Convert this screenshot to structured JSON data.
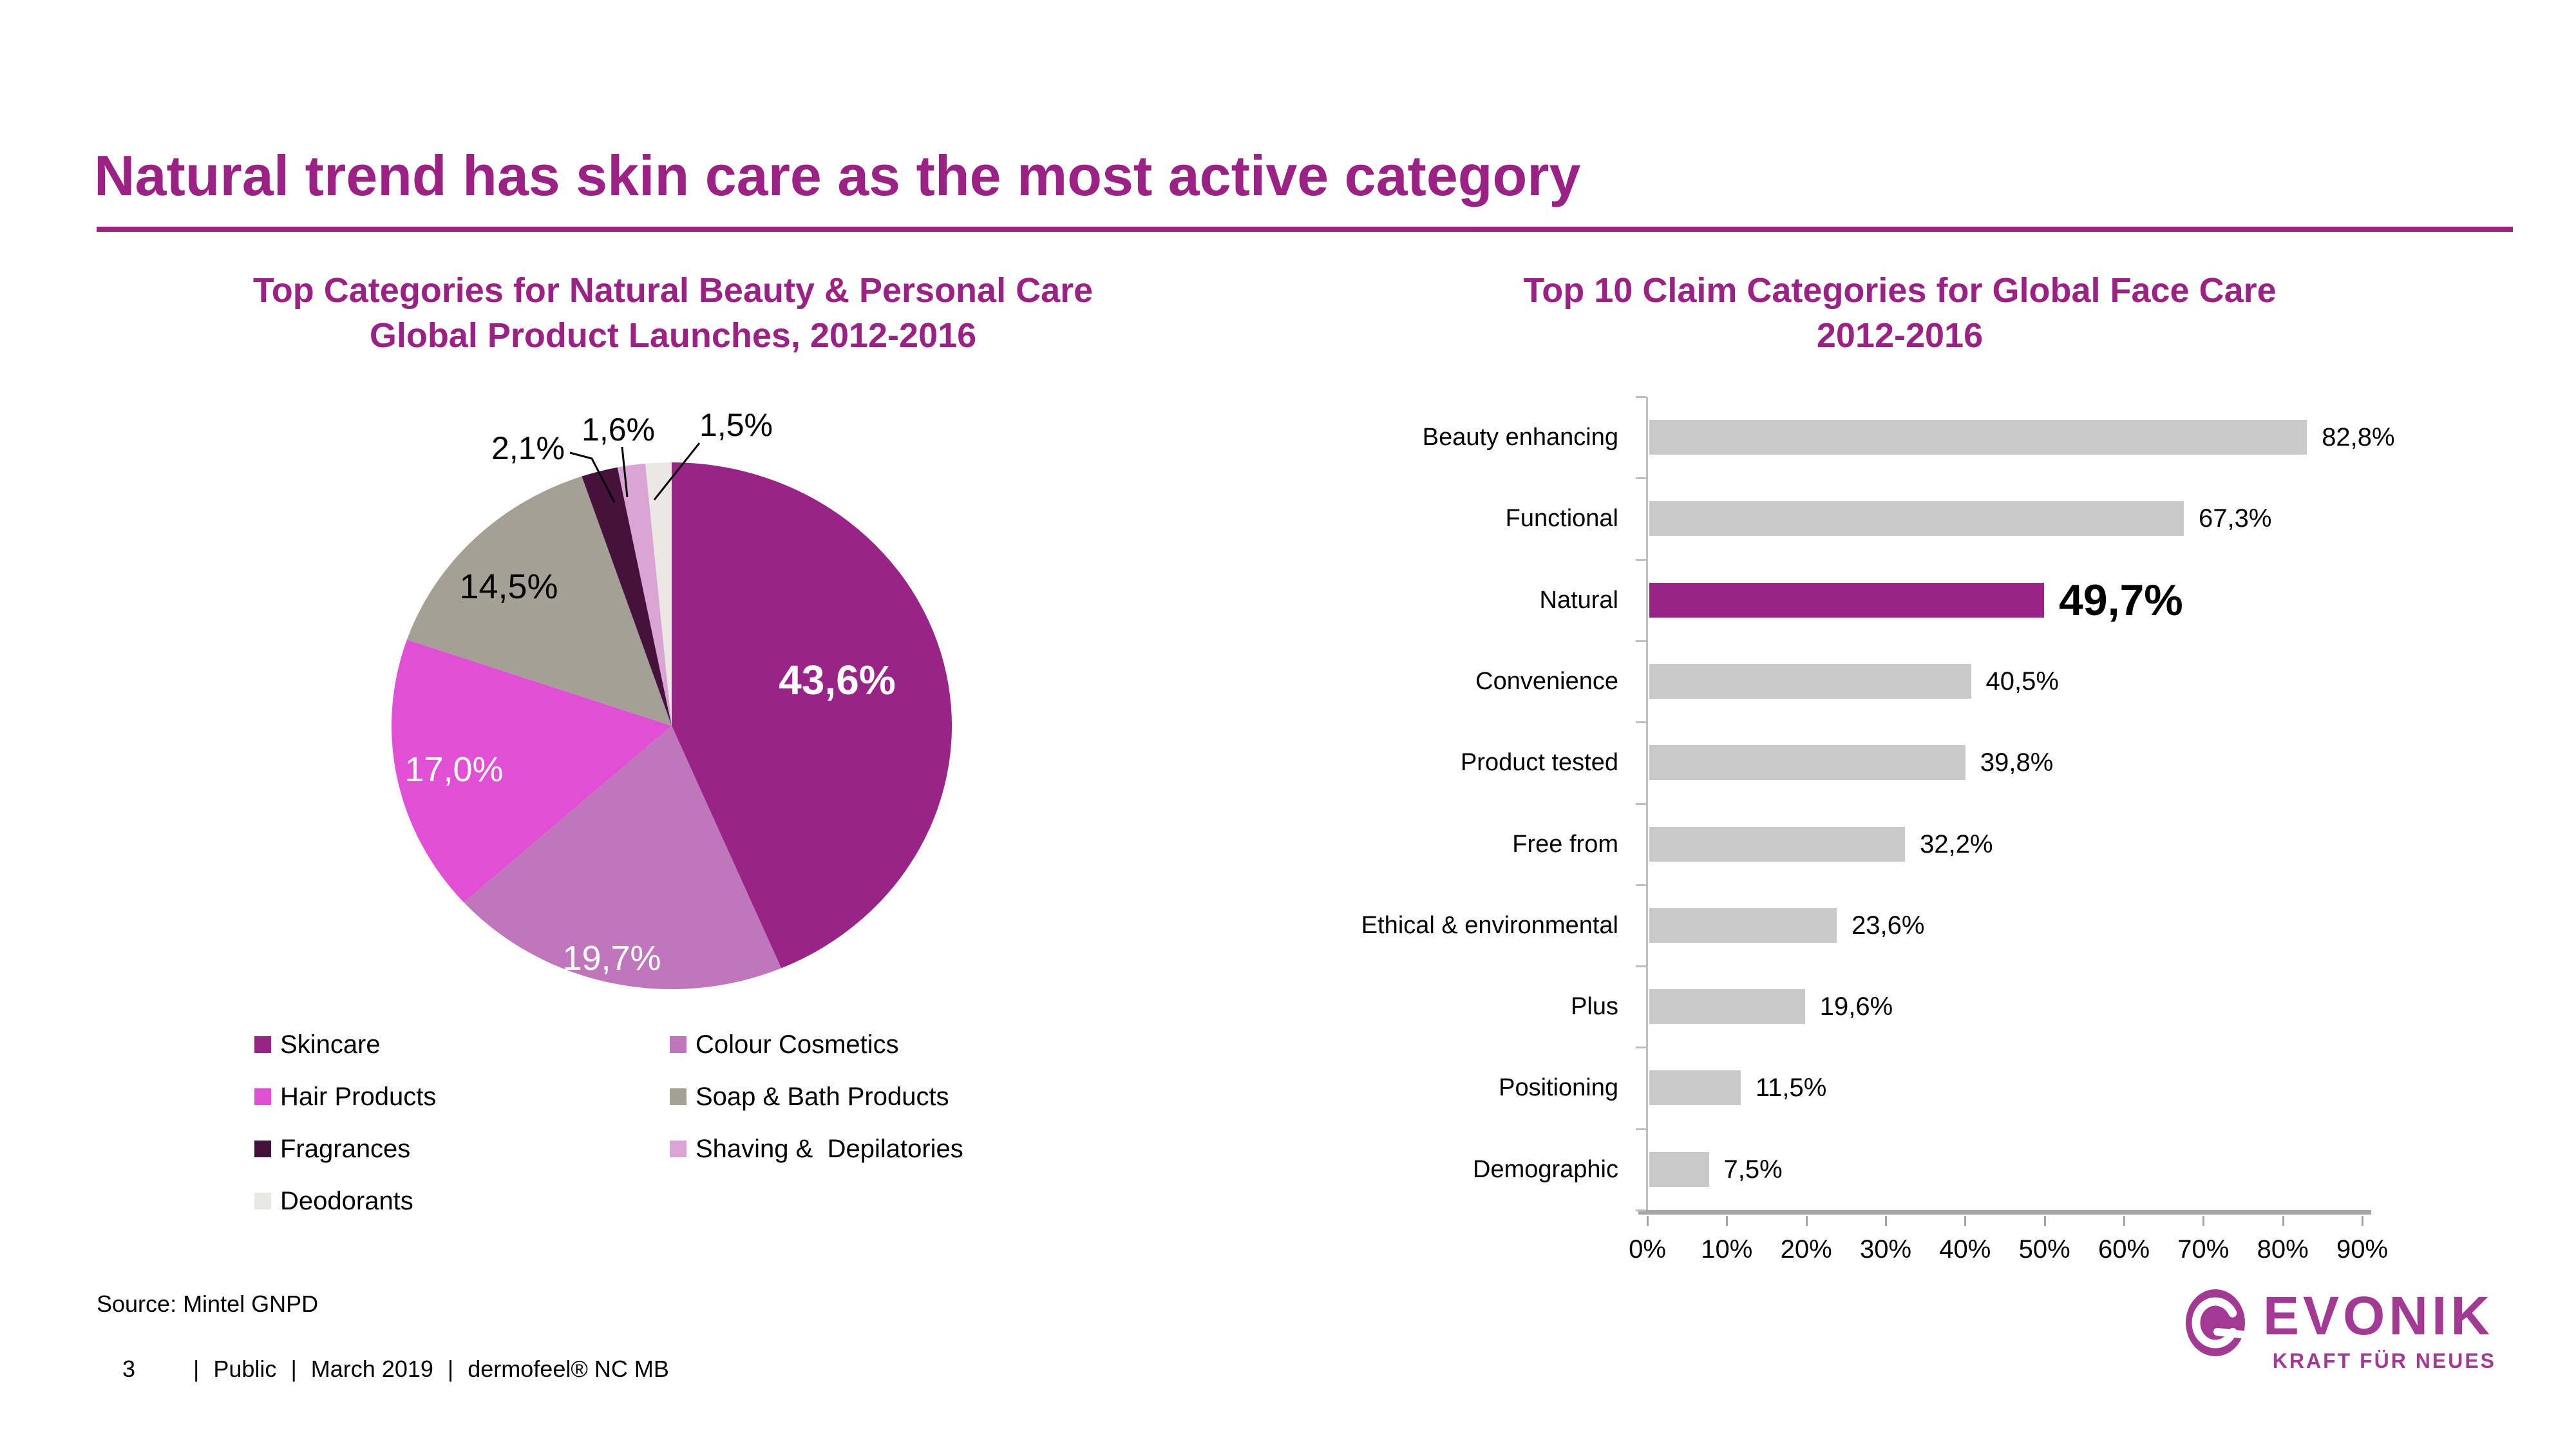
{
  "slide": {
    "title": "Natural trend has skin care as the most active category",
    "accent_color": "#9B2284",
    "footer": {
      "source": "Source: Mintel GNPD",
      "page_number": "3",
      "separator": "|",
      "items": [
        "Public",
        "March 2019",
        "dermofeel® NC MB"
      ]
    },
    "logo": {
      "brand": "EVONIK",
      "tagline": "KRAFT FÜR NEUES",
      "color": "#A23A94"
    }
  },
  "launches": {
    "title_line1": "Top Categories for Natural Beauty & Personal Care",
    "title_line2": "Global Product Launches, 2012-2016",
    "chart_data": {
      "type": "pie",
      "categories": [
        "Skincare",
        "Colour Cosmetics",
        "Hair Products",
        "Soap & Bath Products",
        "Fragrances",
        "Shaving &  Depilatories",
        "Deodorants"
      ],
      "values": [
        43.6,
        19.7,
        17.0,
        14.5,
        2.1,
        1.6,
        1.5
      ],
      "labels": [
        "43,6%",
        "19,7%",
        "17,0%",
        "14,5%",
        "2,1%",
        "1,6%",
        "1,5%"
      ],
      "colors": [
        "#9A2387",
        "#C076BA",
        "#E150D4",
        "#A5A096",
        "#45123C",
        "#DAA5D5",
        "#E9E8E4"
      ],
      "start_angle_deg": 0,
      "direction": "clockwise",
      "unit": "%"
    },
    "legend": [
      {
        "label": "Skincare",
        "color": "#9A2387"
      },
      {
        "label": "Colour Cosmetics",
        "color": "#C076BA"
      },
      {
        "label": "Hair Products",
        "color": "#E150D4"
      },
      {
        "label": "Soap & Bath Products",
        "color": "#A5A096"
      },
      {
        "label": "Fragrances",
        "color": "#45123C"
      },
      {
        "label": "Shaving &  Depilatories",
        "color": "#DAA5D5"
      },
      {
        "label": "Deodorants",
        "color": "#E9E8E4"
      }
    ]
  },
  "claims": {
    "title_line1": "Top 10 Claim Categories for Global Face Care",
    "title_line2": "2012-2016",
    "chart_data": {
      "type": "bar",
      "orientation": "horizontal",
      "categories": [
        "Beauty enhancing",
        "Functional",
        "Natural",
        "Convenience",
        "Product tested",
        "Free from",
        "Ethical & environmental",
        "Plus",
        "Positioning",
        "Demographic"
      ],
      "values": [
        82.8,
        67.3,
        49.7,
        40.5,
        39.8,
        32.2,
        23.6,
        19.6,
        11.5,
        7.5
      ],
      "value_labels": [
        "82,8%",
        "67,3%",
        "49,7%",
        "40,5%",
        "39,8%",
        "32,2%",
        "23,6%",
        "19,6%",
        "11,5%",
        "7,5%"
      ],
      "highlight_category": "Natural",
      "bar_color": "#C9C9C9",
      "highlight_color": "#9A2387",
      "xlim": [
        0,
        90
      ],
      "xticks": [
        "0%",
        "10%",
        "20%",
        "30%",
        "40%",
        "50%",
        "60%",
        "70%",
        "80%",
        "90%"
      ],
      "grid": false,
      "legend": "none",
      "unit": "%"
    }
  }
}
